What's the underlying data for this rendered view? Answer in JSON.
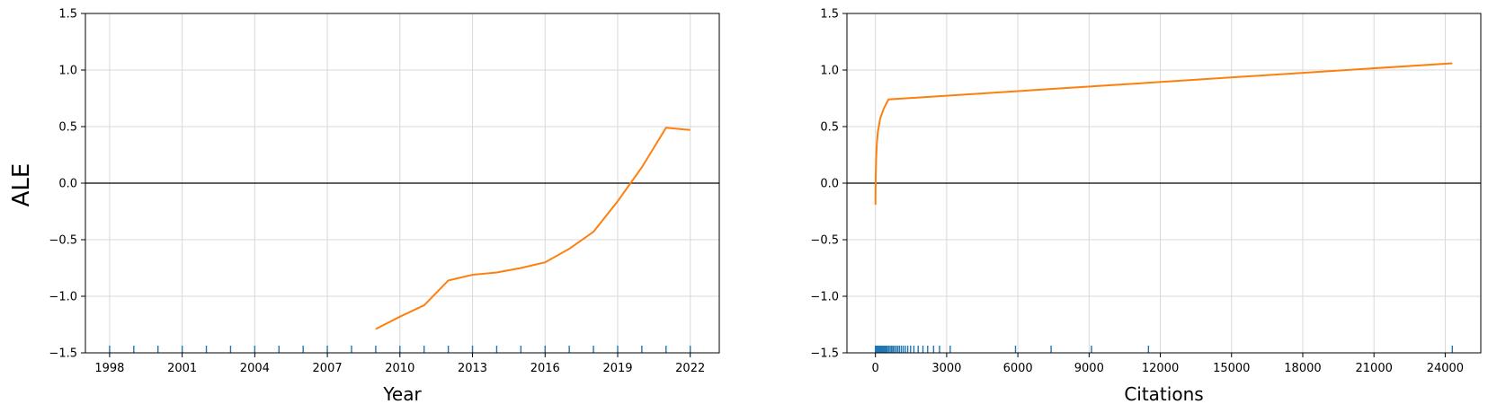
{
  "figure": {
    "shared_ylabel": "ALE"
  },
  "colors": {
    "line": "#ff7f0e",
    "rug": "#1f77b4",
    "zero_line": "#000000",
    "grid": "#d9d9d9",
    "axes": "#000000"
  },
  "chart_data": [
    {
      "type": "line",
      "xlabel": "Year",
      "ylabel": "ALE",
      "xlim": [
        1997,
        2023.2
      ],
      "ylim": [
        -1.5,
        1.5
      ],
      "xticks": [
        1998,
        2001,
        2004,
        2007,
        2010,
        2013,
        2016,
        2019,
        2022
      ],
      "xtick_labels": [
        "1998",
        "2001",
        "2004",
        "2007",
        "2010",
        "2013",
        "2016",
        "2019",
        "2022"
      ],
      "yticks": [
        -1.5,
        -1.0,
        -0.5,
        0.0,
        0.5,
        1.0,
        1.5
      ],
      "ytick_labels": [
        "−1.5",
        "−1.0",
        "−0.5",
        "0.0",
        "0.5",
        "1.0",
        "1.5"
      ],
      "grid": true,
      "zero_line": 0,
      "series": [
        {
          "x": [
            2009,
            2010,
            2011,
            2012,
            2013,
            2014,
            2015,
            2016,
            2017,
            2018,
            2019,
            2020,
            2021,
            2022
          ],
          "y": [
            -1.29,
            -1.18,
            -1.08,
            -0.86,
            -0.81,
            -0.79,
            -0.75,
            -0.7,
            -0.58,
            -0.43,
            -0.16,
            0.14,
            0.49,
            0.47
          ]
        }
      ],
      "rug": [
        1998,
        1999,
        2000,
        2001,
        2002,
        2003,
        2004,
        2005,
        2006,
        2007,
        2008,
        2009,
        2010,
        2011,
        2012,
        2013,
        2014,
        2015,
        2016,
        2017,
        2018,
        2019,
        2020,
        2021,
        2022
      ]
    },
    {
      "type": "line",
      "xlabel": "Citations",
      "ylabel": "",
      "xlim": [
        -1200,
        25500
      ],
      "ylim": [
        -1.5,
        1.5
      ],
      "xticks": [
        0,
        3000,
        6000,
        9000,
        12000,
        15000,
        18000,
        21000,
        24000
      ],
      "xtick_labels": [
        "0",
        "3000",
        "6000",
        "9000",
        "12000",
        "15000",
        "18000",
        "21000",
        "24000"
      ],
      "yticks": [
        -1.5,
        -1.0,
        -0.5,
        0.0,
        0.5,
        1.0,
        1.5
      ],
      "ytick_labels": [
        "−1.5",
        "−1.0",
        "−0.5",
        "0.0",
        "0.5",
        "1.0",
        "1.5"
      ],
      "grid": true,
      "zero_line": 0,
      "series": [
        {
          "x": [
            0,
            10,
            30,
            60,
            100,
            200,
            350,
            550,
            24300
          ],
          "y": [
            -0.19,
            0.05,
            0.22,
            0.35,
            0.45,
            0.57,
            0.66,
            0.74,
            1.06
          ]
        }
      ],
      "rug": [
        0,
        30,
        60,
        100,
        140,
        180,
        220,
        260,
        300,
        340,
        380,
        420,
        460,
        500,
        560,
        620,
        680,
        740,
        800,
        870,
        940,
        1010,
        1090,
        1170,
        1260,
        1360,
        1480,
        1620,
        1800,
        2000,
        2200,
        2450,
        2700,
        3150,
        5900,
        7400,
        9100,
        11500,
        24300
      ]
    }
  ]
}
